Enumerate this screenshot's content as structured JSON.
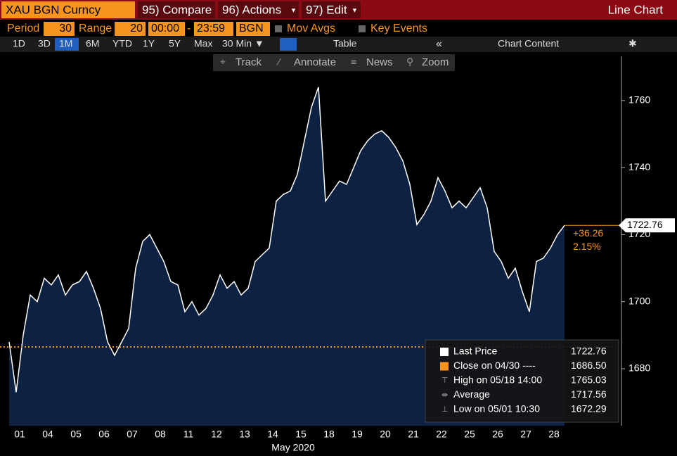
{
  "toolbar": {
    "security": "XAU BGN Curncy",
    "compare": "95) Compare",
    "actions": "96) Actions",
    "edit": "97) Edit",
    "chart_type": "Line Chart"
  },
  "settings": {
    "period_label": "Period",
    "period": "30",
    "range_label": "Range",
    "range": "20",
    "start": "00:00",
    "sep": "-",
    "end": "23:59",
    "source": "BGN",
    "mov_avgs": "Mov Avgs",
    "key_events": "Key Events"
  },
  "periods": [
    "1D",
    "3D",
    "1M",
    "6M",
    "YTD",
    "1Y",
    "5Y",
    "Max",
    "30 Min ▼"
  ],
  "table": "Table",
  "chart_content": "Chart Content",
  "tools": [
    "Track",
    "Annotate",
    "News",
    "Zoom"
  ],
  "chart_data": {
    "type": "area",
    "x_label": "May 2020",
    "categories": [
      "01",
      "04",
      "05",
      "06",
      "07",
      "08",
      "11",
      "12",
      "13",
      "14",
      "15",
      "18",
      "19",
      "20",
      "21",
      "22",
      "25",
      "26",
      "27",
      "28"
    ],
    "values": [
      [
        1688,
        1673,
        1690,
        1702
      ],
      [
        1700,
        1707,
        1705,
        1708
      ],
      [
        1702,
        1705,
        1706,
        1709
      ],
      [
        1704,
        1698,
        1688,
        1684
      ],
      [
        1688,
        1692,
        1710,
        1718
      ],
      [
        1720,
        1716,
        1712,
        1706
      ],
      [
        1705,
        1697,
        1700,
        1696
      ],
      [
        1698,
        1702,
        1708,
        1704
      ],
      [
        1706,
        1702,
        1704,
        1712
      ],
      [
        1714,
        1716,
        1730,
        1732
      ],
      [
        1733,
        1738,
        1748,
        1758
      ],
      [
        1764,
        1730,
        1733,
        1736
      ],
      [
        1735,
        1740,
        1745,
        1748
      ],
      [
        1750,
        1751,
        1749,
        1746
      ],
      [
        1742,
        1735,
        1723,
        1726
      ],
      [
        1730,
        1737,
        1733,
        1728
      ],
      [
        1730,
        1728,
        1731,
        1734
      ],
      [
        1728,
        1715,
        1712,
        1707
      ],
      [
        1710,
        1703,
        1697,
        1712
      ],
      [
        1713,
        1716,
        1720,
        1722.76
      ]
    ],
    "ylim": [
      1663,
      1769
    ],
    "yticks": [
      1680,
      1700,
      1720,
      1740,
      1760
    ],
    "change": "+36.26",
    "change_pct": "2.15%",
    "legend": [
      {
        "name": "Last Price",
        "value": 1722.76
      },
      {
        "name": "Close on 04/30 ----",
        "value": {
          "value": 1686.5,
          "label": "1686.50"
        }
      },
      {
        "name": "High on 05/18 14:00",
        "value": 1765.03
      },
      {
        "name": "Average",
        "value": 1717.56
      },
      {
        "name": "Low on 05/01 10:30",
        "value": 1672.29
      }
    ]
  }
}
